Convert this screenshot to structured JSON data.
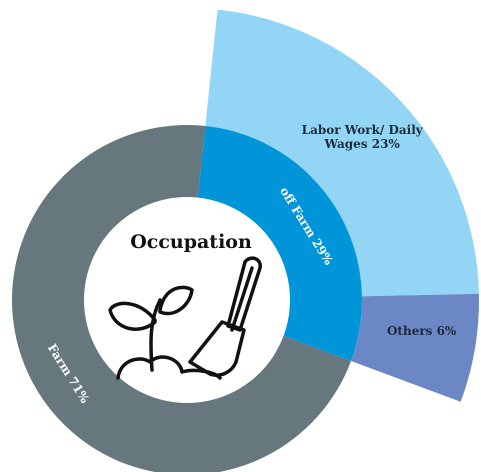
{
  "chart_data": {
    "type": "sunburst",
    "title": "Occupation",
    "rings": [
      {
        "labels": [
          "off Farm 29%",
          "Farm 71%"
        ],
        "values": [
          29,
          71
        ],
        "colors": [
          "#0095d9",
          "#66777d"
        ]
      },
      {
        "labels": [
          "Labor Work/ Daily Wages 23%",
          "Others 6%"
        ],
        "values": [
          23,
          6
        ],
        "colors": [
          "#92d5f5",
          "#6b87c6"
        ]
      }
    ]
  }
}
